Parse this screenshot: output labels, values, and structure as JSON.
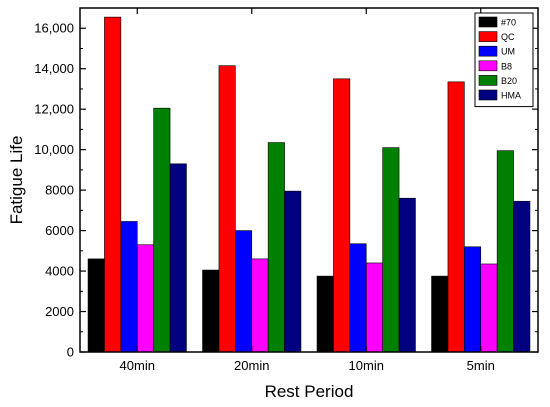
{
  "chart_data": {
    "type": "bar",
    "title": "",
    "xlabel": "Rest Period",
    "ylabel": "Fatigue Life",
    "categories": [
      "40min",
      "20min",
      "10min",
      "5min"
    ],
    "ylim": [
      0,
      17000
    ],
    "yticks": [
      0,
      2000,
      4000,
      6000,
      8000,
      10000,
      12000,
      14000,
      16000
    ],
    "ytick_labels": [
      "0",
      "2000",
      "4000",
      "6000",
      "8000",
      "10,000",
      "12,000",
      "14,000",
      "16,000"
    ],
    "legend_position": "top-right",
    "grid": false,
    "series": [
      {
        "name": "#70",
        "color": "#000000",
        "values": [
          4600,
          4050,
          3750,
          3750
        ]
      },
      {
        "name": "QC",
        "color": "#ff0000",
        "values": [
          16550,
          14150,
          13500,
          13350
        ]
      },
      {
        "name": "UM",
        "color": "#0000ff",
        "values": [
          6450,
          6000,
          5350,
          5200
        ]
      },
      {
        "name": "B8",
        "color": "#ff00ff",
        "values": [
          5300,
          4600,
          4400,
          4350
        ]
      },
      {
        "name": "B20",
        "color": "#008000",
        "values": [
          12050,
          10350,
          10100,
          9950
        ]
      },
      {
        "name": "HMA",
        "color": "#000080",
        "values": [
          9300,
          7950,
          7600,
          7450
        ]
      }
    ]
  }
}
